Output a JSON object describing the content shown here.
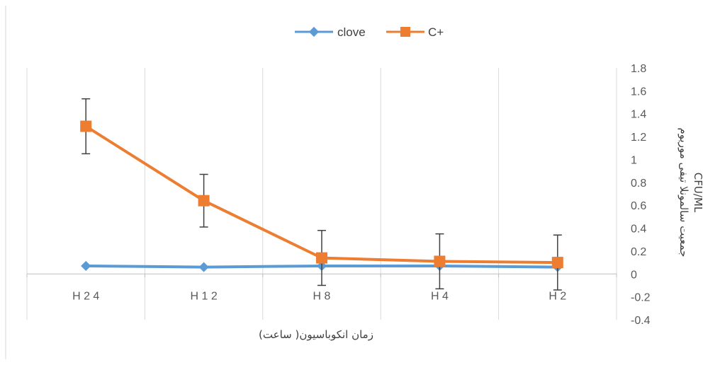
{
  "chart_data": {
    "type": "line",
    "categories": [
      "H 2 4",
      "H 1 2",
      "H 8",
      "H 4",
      "H 2"
    ],
    "series": [
      {
        "name": "clove",
        "values": [
          0.07,
          0.06,
          0.07,
          0.07,
          0.06
        ],
        "color": "#5B9BD5",
        "marker": "diamond"
      },
      {
        "name": "C+",
        "values": [
          1.29,
          0.64,
          0.14,
          0.11,
          0.1
        ],
        "error": [
          0.24,
          0.23,
          0.24,
          0.24,
          0.24
        ],
        "color": "#ED7D31",
        "marker": "square"
      }
    ],
    "xlabel": "زمان انکوباسیون( ساعت)",
    "ylabel_line1": "جمعیت سالمونلا تیفی موریوم",
    "ylabel_line2": "CFU/ML",
    "ylim": [
      -0.4,
      1.8
    ],
    "yticks": [
      "-0.4",
      "-0.2",
      "0",
      "0.2",
      "0.4",
      "0.6",
      "0.8",
      "1",
      "1.2",
      "1.4",
      "1.6",
      "1.8"
    ],
    "y_axis_position": "right",
    "legend_position": "top-center",
    "grid": {
      "vertical": true,
      "horizontal": false
    }
  }
}
